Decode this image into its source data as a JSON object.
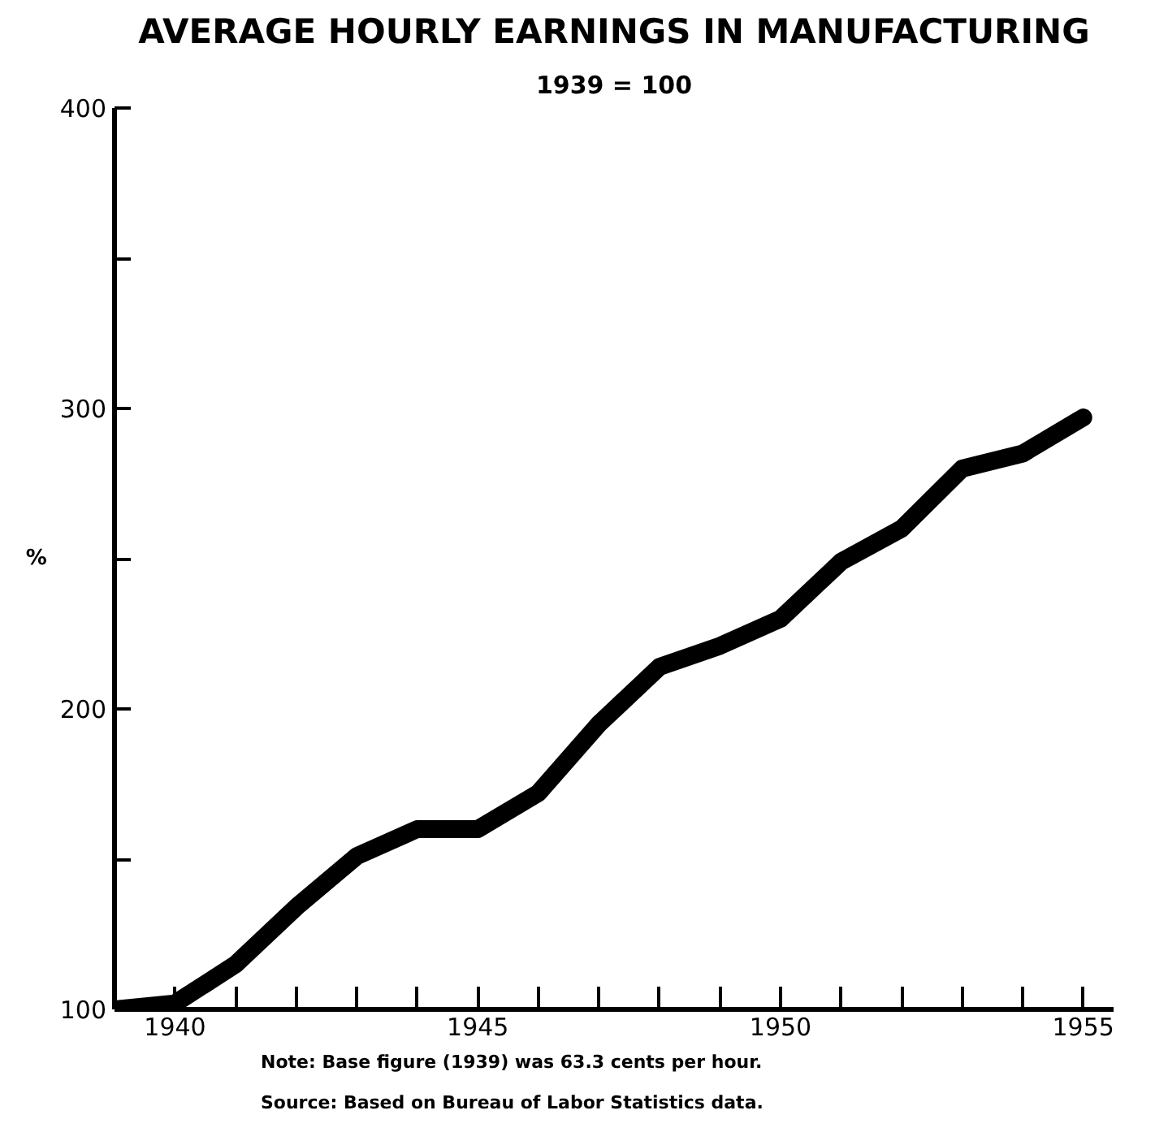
{
  "chart_data": {
    "type": "line",
    "title": "AVERAGE HOURLY EARNINGS IN MANUFACTURING",
    "subtitle": "1939 = 100",
    "ylabel": "%",
    "x": [
      1939,
      1940,
      1941,
      1942,
      1943,
      1944,
      1945,
      1946,
      1947,
      1948,
      1949,
      1950,
      1951,
      1952,
      1953,
      1954,
      1955
    ],
    "series": [
      {
        "color": "#000000",
        "values": [
          100,
          102,
          115,
          134,
          151,
          160,
          160,
          172,
          195,
          214,
          221,
          230,
          249,
          260,
          280,
          285,
          297
        ]
      }
    ],
    "xlim": [
      1939,
      1955.5
    ],
    "ylim": [
      100,
      400
    ],
    "xticks": [
      {
        "value": 1939,
        "label": null
      },
      1940,
      {
        "value": 1941,
        "label": null
      },
      {
        "value": 1942,
        "label": null
      },
      {
        "value": 1943,
        "label": null
      },
      {
        "value": 1944,
        "label": null
      },
      1945,
      {
        "value": 1946,
        "label": null
      },
      {
        "value": 1947,
        "label": null
      },
      {
        "value": 1948,
        "label": null
      },
      {
        "value": 1949,
        "label": null
      },
      1950,
      {
        "value": 1951,
        "label": null
      },
      {
        "value": 1952,
        "label": null
      },
      {
        "value": 1953,
        "label": null
      },
      {
        "value": 1954,
        "label": null
      },
      1955
    ],
    "yticks": [
      100,
      {
        "value": 150,
        "label": null
      },
      200,
      {
        "value": 250,
        "label": null
      },
      300,
      {
        "value": 350,
        "label": null
      },
      400
    ],
    "annotations": [
      "Note: Base figure (1939) was 63.3 cents per hour.",
      "Source: Based on Bureau of Labor Statistics data."
    ],
    "line_style": "solid"
  }
}
